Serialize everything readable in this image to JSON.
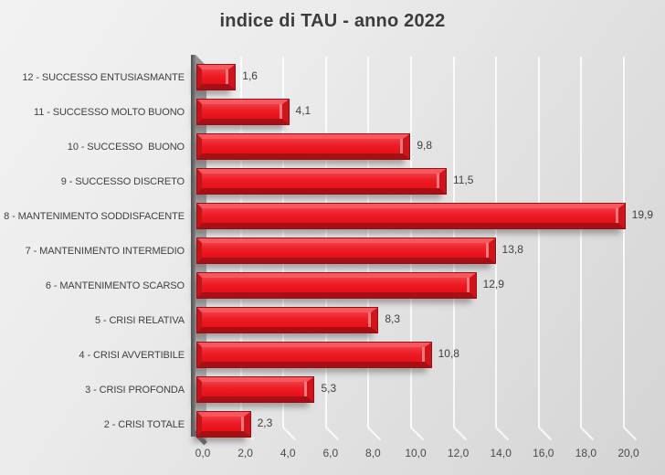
{
  "chart_data": {
    "type": "bar",
    "orientation": "horizontal",
    "title": "indice di TAU - anno 2022",
    "categories": [
      "12 - SUCCESSO ENTUSIASMANTE",
      "11 - SUCCESSO MOLTO BUONO",
      "10 - SUCCESSO  BUONO",
      "9 - SUCCESSO DISCRETO",
      "8 - MANTENIMENTO SODDISFACENTE",
      "7 - MANTENIMENTO INTERMEDIO",
      "6 - MANTENIMENTO SCARSO",
      "5 - CRISI RELATIVA",
      "4 - CRISI AVVERTIBILE",
      "3 - CRISI PROFONDA",
      "2 - CRISI TOTALE"
    ],
    "values": [
      1.6,
      4.1,
      9.8,
      11.5,
      19.9,
      13.8,
      12.9,
      8.3,
      10.8,
      5.3,
      2.3
    ],
    "value_labels": [
      "1,6",
      "4,1",
      "9,8",
      "11,5",
      "19,9",
      "13,8",
      "12,9",
      "8,3",
      "10,8",
      "5,3",
      "2,3"
    ],
    "x_tick_labels": [
      "0,0",
      "2,0",
      "4,0",
      "6,0",
      "8,0",
      "10,0",
      "12,0",
      "14,0",
      "16,0",
      "18,0",
      "20,0"
    ],
    "x_tick_values": [
      0,
      2,
      4,
      6,
      8,
      10,
      12,
      14,
      16,
      18,
      20
    ],
    "xlim": [
      0,
      20
    ],
    "grid": true,
    "legend": false,
    "style": "3d-bevel",
    "bar_color": "#ee1c25",
    "bar_highlight": "#f5585e",
    "bar_dark": "#a80f15",
    "wall_color": "#6f6f6f",
    "background_color": "#e4e4e4",
    "text_color": "#3f3f3f"
  }
}
